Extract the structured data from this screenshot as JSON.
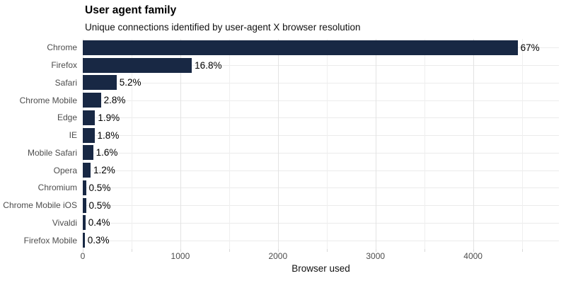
{
  "chart_data": {
    "type": "bar",
    "orientation": "horizontal",
    "title": "User agent family",
    "subtitle": "Unique connections identified by user-agent X browser resolution",
    "xlabel": "Browser used",
    "categories": [
      "Chrome",
      "Firefox",
      "Safari",
      "Chrome Mobile",
      "Edge",
      "IE",
      "Mobile Safari",
      "Opera",
      "Chromium",
      "Chrome Mobile iOS",
      "Vivaldi",
      "Firefox Mobile"
    ],
    "values": [
      4457,
      1118,
      346,
      186,
      126,
      120,
      106,
      80,
      33,
      33,
      27,
      20
    ],
    "value_labels": [
      "67%",
      "16.8%",
      "5.2%",
      "2.8%",
      "1.9%",
      "1.8%",
      "1.6%",
      "1.2%",
      "0.5%",
      "0.5%",
      "0.4%",
      "0.3%"
    ],
    "xlim": [
      0,
      4880
    ],
    "x_major_ticks": [
      0,
      1000,
      2000,
      3000,
      4000
    ],
    "x_minor_ticks": [
      500,
      1500,
      2500,
      3500,
      4500
    ],
    "grid": true,
    "legend": "none",
    "colors": {
      "bar": "#182844",
      "grid_major": "#e3e3e3",
      "grid_minor": "#efefef",
      "grid_horizontal": "#ebebeb",
      "tick_mark": "#d9d9d9",
      "category_text": "#4d4d4d",
      "tick_text": "#4d4d4d",
      "value_text": "#000000",
      "title_text": "#000000"
    }
  }
}
